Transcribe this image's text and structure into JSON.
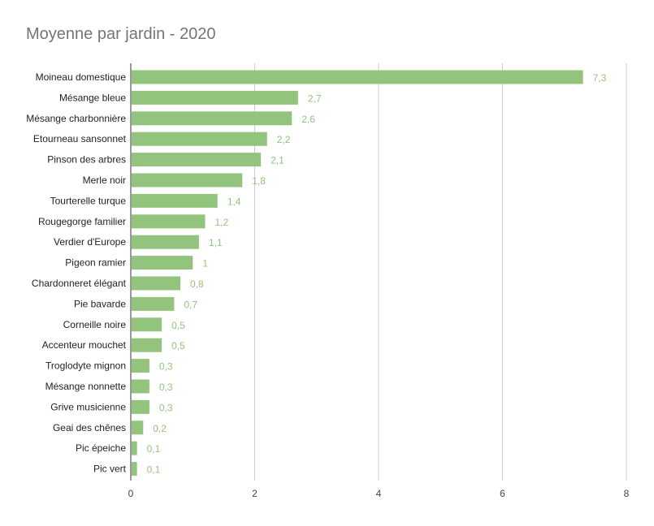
{
  "colors": {
    "bar": "#93c47d",
    "value_label": "#93c47d",
    "grid": "#cccccc",
    "title": "#757575"
  },
  "chart_data": {
    "type": "bar",
    "orientation": "horizontal",
    "title": "Moyenne par jardin - 2020",
    "xlabel": "",
    "ylabel": "",
    "xlim": [
      0,
      8
    ],
    "xticks": [
      "0",
      "2",
      "4",
      "6",
      "8"
    ],
    "grid": true,
    "legend": "none",
    "categories": [
      "Moineau domestique",
      "Mésange bleue",
      "Mésange charbonnière",
      "Etourneau sansonnet",
      "Pinson des arbres",
      "Merle noir",
      "Tourterelle turque",
      "Rougegorge familier",
      "Verdier d'Europe",
      "Pigeon ramier",
      "Chardonneret élégant",
      "Pie bavarde",
      "Corneille noire",
      "Accenteur mouchet",
      "Troglodyte mignon",
      "Mésange nonnette",
      "Grive musicienne",
      "Geai des chênes",
      "Pic épeiche",
      "Pic vert"
    ],
    "values": [
      7.3,
      2.7,
      2.6,
      2.2,
      2.1,
      1.8,
      1.4,
      1.2,
      1.1,
      1,
      0.8,
      0.7,
      0.5,
      0.5,
      0.3,
      0.3,
      0.3,
      0.2,
      0.1,
      0.1
    ],
    "value_labels": [
      "7,3",
      "2,7",
      "2,6",
      "2,2",
      "2,1",
      "1,8",
      "1,4",
      "1,2",
      "1,1",
      "1",
      "0,8",
      "0,7",
      "0,5",
      "0,5",
      "0,3",
      "0,3",
      "0,3",
      "0,2",
      "0,1",
      "0,1"
    ]
  }
}
